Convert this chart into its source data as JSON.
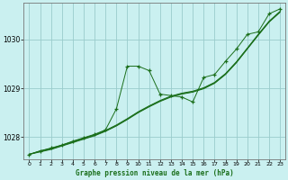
{
  "title": "Graphe pression niveau de la mer (hPa)",
  "background_color": "#caf0f0",
  "grid_color": "#99cccc",
  "line_color": "#1a6e1a",
  "xlim": [
    -0.5,
    23.5
  ],
  "ylim": [
    1027.55,
    1030.75
  ],
  "yticks": [
    1028,
    1029,
    1030
  ],
  "xticks": [
    0,
    1,
    2,
    3,
    4,
    5,
    6,
    7,
    8,
    9,
    10,
    11,
    12,
    13,
    14,
    15,
    16,
    17,
    18,
    19,
    20,
    21,
    22,
    23
  ],
  "hours": [
    0,
    1,
    2,
    3,
    4,
    5,
    6,
    7,
    8,
    9,
    10,
    11,
    12,
    13,
    14,
    15,
    16,
    17,
    18,
    19,
    20,
    21,
    22,
    23
  ],
  "raw_values": [
    1027.65,
    1027.72,
    1027.78,
    1027.84,
    1027.92,
    1027.99,
    1028.06,
    1028.15,
    1028.58,
    1029.45,
    1029.45,
    1029.36,
    1028.88,
    1028.85,
    1028.82,
    1028.72,
    1029.22,
    1029.28,
    1029.55,
    1029.8,
    1030.1,
    1030.15,
    1030.52,
    1030.62
  ],
  "smooth1": [
    1027.65,
    1027.7,
    1027.75,
    1027.82,
    1027.89,
    1027.96,
    1028.03,
    1028.12,
    1028.23,
    1028.36,
    1028.5,
    1028.62,
    1028.73,
    1028.82,
    1028.88,
    1028.92,
    1028.99,
    1029.1,
    1029.28,
    1029.52,
    1029.8,
    1030.08,
    1030.35,
    1030.55
  ],
  "smooth2": [
    1027.65,
    1027.71,
    1027.76,
    1027.83,
    1027.9,
    1027.97,
    1028.04,
    1028.13,
    1028.24,
    1028.37,
    1028.51,
    1028.63,
    1028.74,
    1028.83,
    1028.89,
    1028.93,
    1029.0,
    1029.11,
    1029.29,
    1029.53,
    1029.81,
    1030.09,
    1030.36,
    1030.56
  ],
  "smooth3": [
    1027.65,
    1027.72,
    1027.77,
    1027.84,
    1027.91,
    1027.98,
    1028.05,
    1028.14,
    1028.25,
    1028.38,
    1028.52,
    1028.64,
    1028.75,
    1028.84,
    1028.9,
    1028.94,
    1029.01,
    1029.12,
    1029.3,
    1029.54,
    1029.82,
    1030.1,
    1030.37,
    1030.57
  ]
}
